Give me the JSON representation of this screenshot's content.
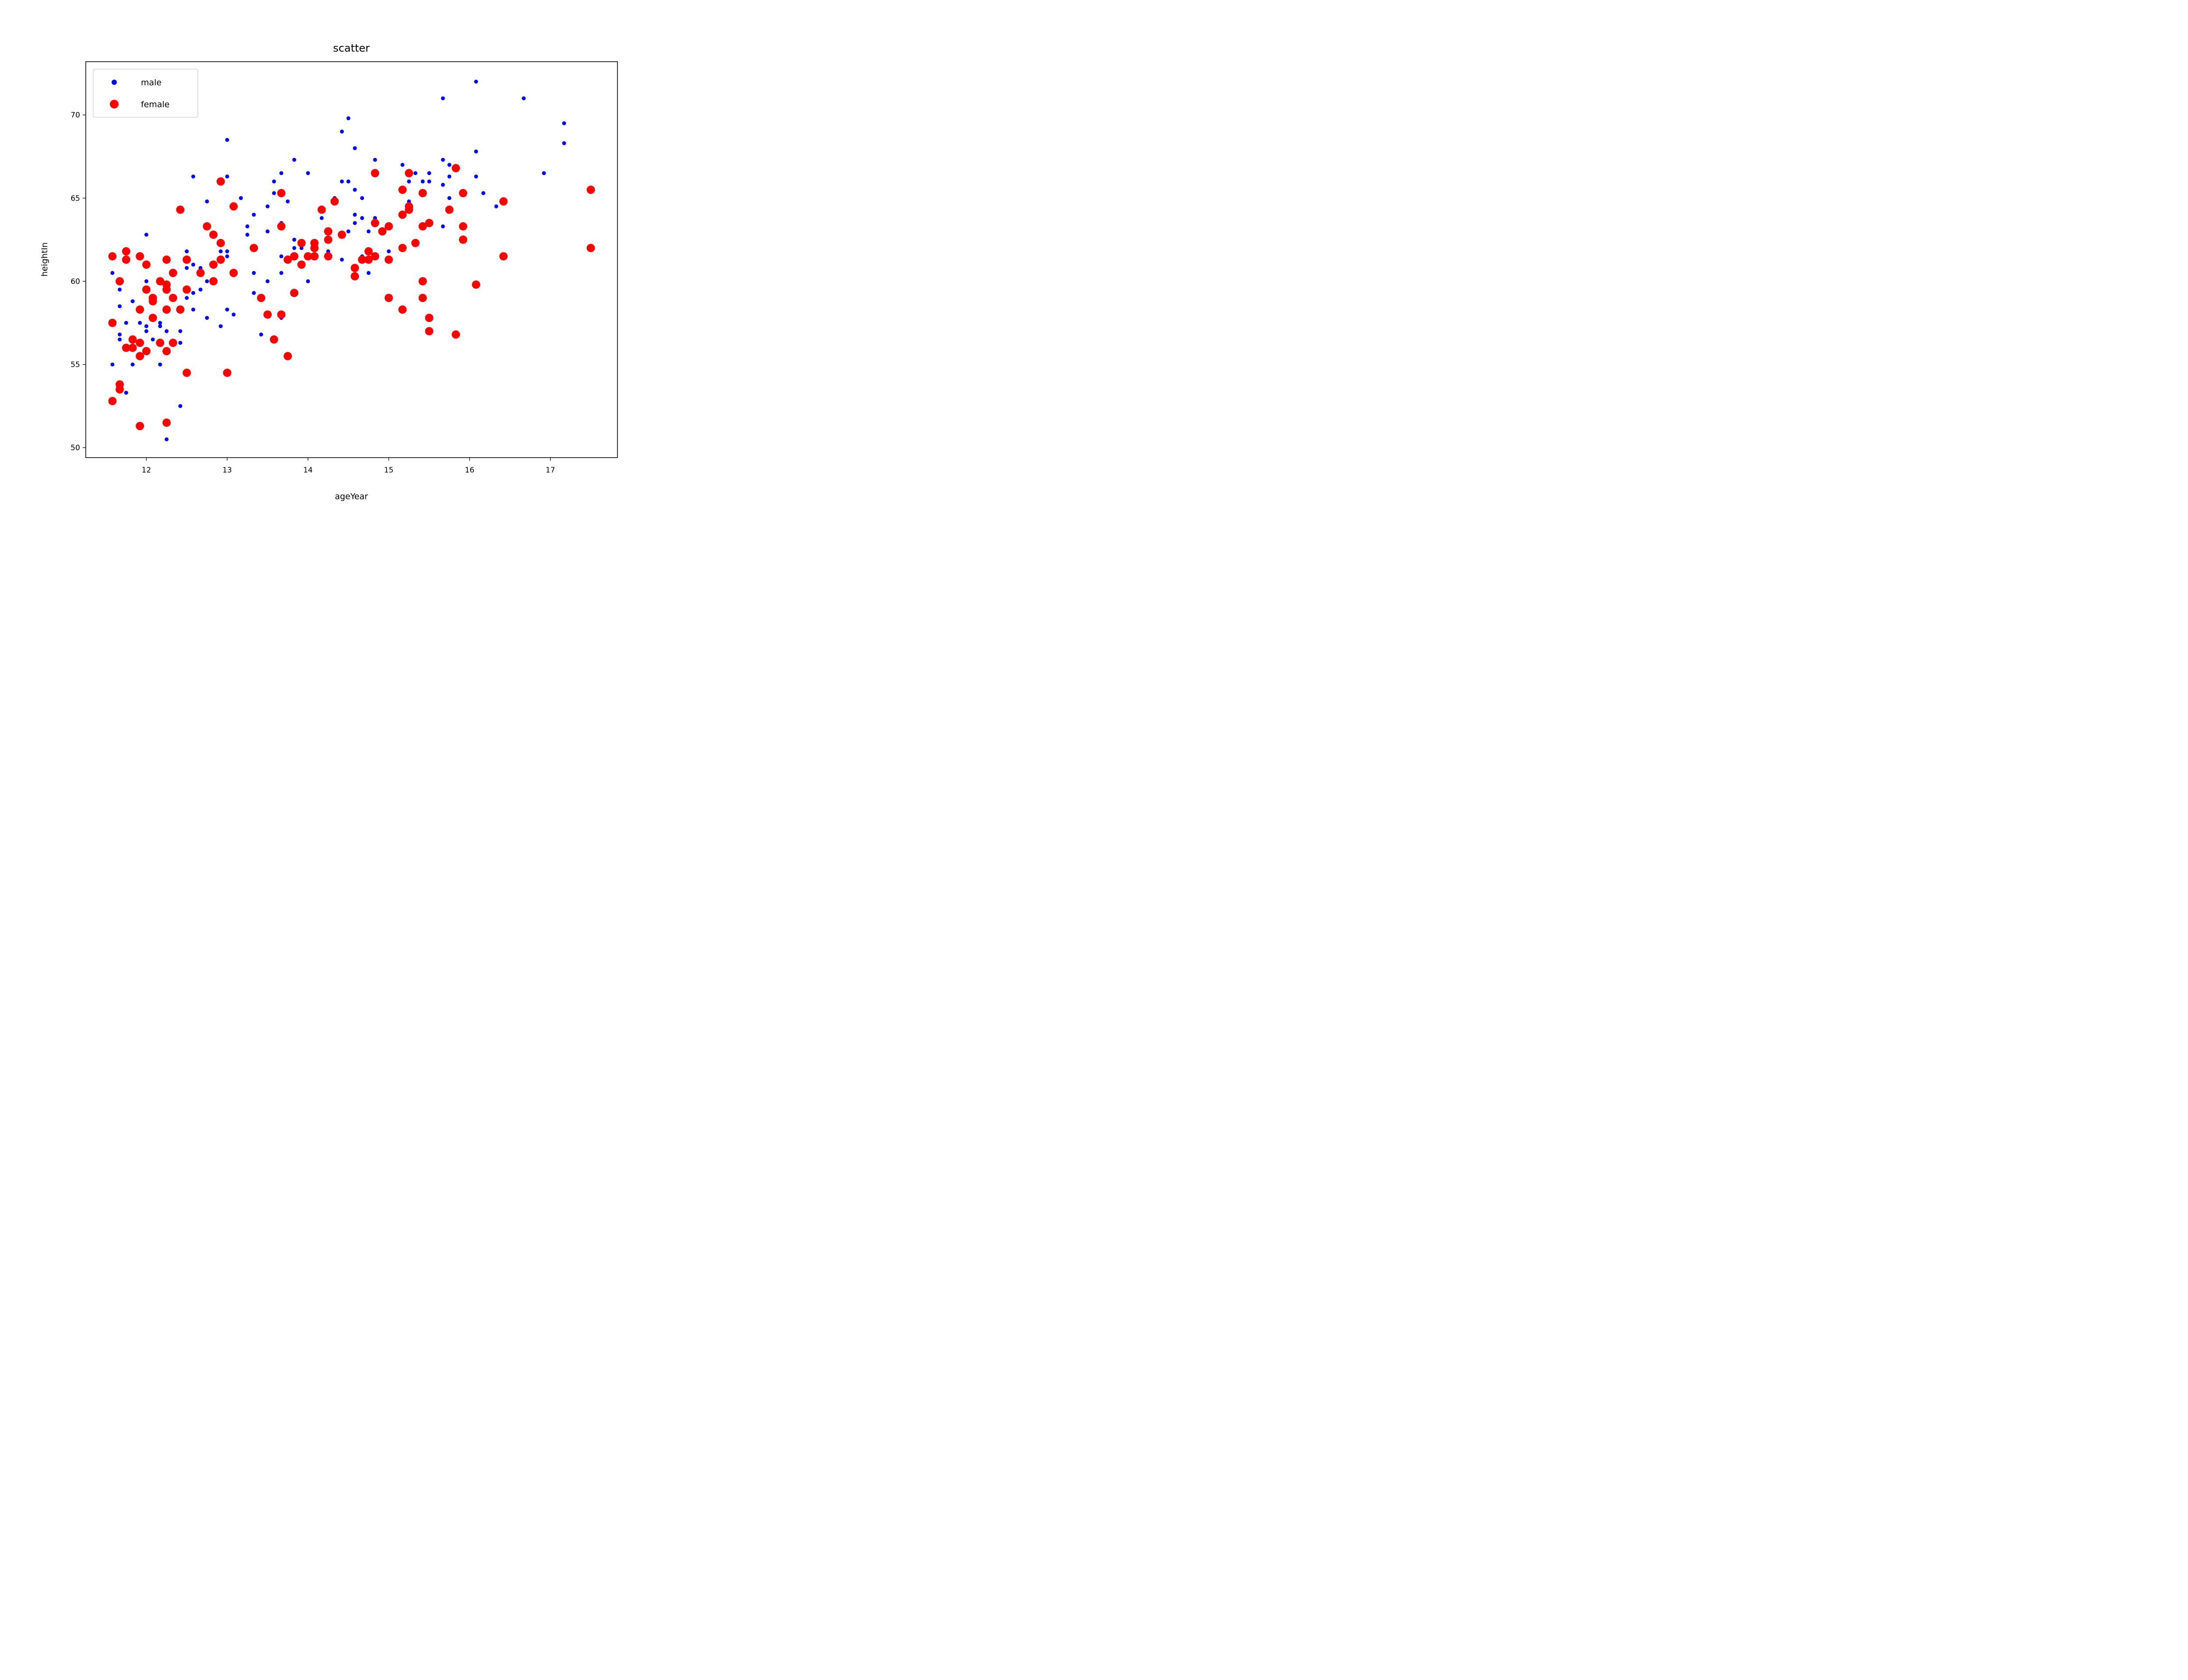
{
  "chart_data": {
    "type": "scatter",
    "title": "scatter",
    "xlabel": "ageYear",
    "ylabel": "heightIn",
    "xlim": [
      11.25,
      17.83
    ],
    "ylim": [
      49.4,
      73.2
    ],
    "xticks": [
      12,
      13,
      14,
      15,
      16,
      17
    ],
    "yticks": [
      50,
      55,
      60,
      65,
      70
    ],
    "grid": false,
    "legend_position": "upper-left",
    "series": [
      {
        "name": "male",
        "color": "#0000ff",
        "marker": "small-circle",
        "points": [
          [
            11.58,
            60.5
          ],
          [
            11.58,
            55.0
          ],
          [
            11.67,
            59.5
          ],
          [
            11.67,
            56.8
          ],
          [
            11.67,
            56.5
          ],
          [
            11.67,
            58.5
          ],
          [
            11.75,
            57.5
          ],
          [
            11.75,
            53.3
          ],
          [
            11.83,
            58.8
          ],
          [
            11.83,
            55.0
          ],
          [
            11.92,
            57.5
          ],
          [
            12.0,
            62.8
          ],
          [
            12.0,
            60.0
          ],
          [
            12.0,
            57.3
          ],
          [
            12.0,
            57.0
          ],
          [
            12.08,
            56.5
          ],
          [
            12.17,
            57.5
          ],
          [
            12.17,
            57.3
          ],
          [
            12.17,
            55.0
          ],
          [
            12.25,
            57.0
          ],
          [
            12.25,
            50.5
          ],
          [
            12.42,
            57.0
          ],
          [
            12.42,
            56.3
          ],
          [
            12.42,
            52.5
          ],
          [
            12.5,
            61.8
          ],
          [
            12.5,
            60.8
          ],
          [
            12.5,
            59.0
          ],
          [
            12.58,
            66.3
          ],
          [
            12.58,
            61.0
          ],
          [
            12.58,
            59.3
          ],
          [
            12.58,
            58.3
          ],
          [
            12.67,
            60.8
          ],
          [
            12.67,
            59.5
          ],
          [
            12.75,
            64.8
          ],
          [
            12.75,
            60.0
          ],
          [
            12.75,
            57.8
          ],
          [
            12.92,
            61.8
          ],
          [
            12.92,
            57.3
          ],
          [
            13.0,
            68.5
          ],
          [
            13.0,
            66.3
          ],
          [
            13.0,
            61.8
          ],
          [
            13.0,
            61.5
          ],
          [
            13.0,
            58.3
          ],
          [
            13.08,
            58.0
          ],
          [
            13.17,
            65.0
          ],
          [
            13.25,
            63.3
          ],
          [
            13.25,
            62.8
          ],
          [
            13.33,
            64.0
          ],
          [
            13.33,
            60.5
          ],
          [
            13.33,
            59.3
          ],
          [
            13.42,
            56.8
          ],
          [
            13.5,
            64.5
          ],
          [
            13.5,
            63.0
          ],
          [
            13.5,
            60.0
          ],
          [
            13.58,
            66.0
          ],
          [
            13.58,
            65.3
          ],
          [
            13.67,
            66.5
          ],
          [
            13.67,
            63.5
          ],
          [
            13.67,
            61.5
          ],
          [
            13.67,
            60.5
          ],
          [
            13.67,
            57.8
          ],
          [
            13.75,
            64.8
          ],
          [
            13.83,
            67.3
          ],
          [
            13.83,
            62.5
          ],
          [
            13.83,
            62.0
          ],
          [
            13.92,
            62.0
          ],
          [
            14.0,
            66.5
          ],
          [
            14.0,
            60.0
          ],
          [
            14.17,
            63.8
          ],
          [
            14.25,
            61.8
          ],
          [
            14.33,
            65.0
          ],
          [
            14.42,
            69.0
          ],
          [
            14.42,
            66.0
          ],
          [
            14.42,
            61.3
          ],
          [
            14.5,
            69.8
          ],
          [
            14.5,
            66.0
          ],
          [
            14.5,
            63.0
          ],
          [
            14.58,
            68.0
          ],
          [
            14.58,
            65.5
          ],
          [
            14.58,
            64.0
          ],
          [
            14.58,
            63.5
          ],
          [
            14.67,
            65.0
          ],
          [
            14.67,
            63.8
          ],
          [
            14.67,
            61.5
          ],
          [
            14.75,
            63.0
          ],
          [
            14.75,
            60.5
          ],
          [
            14.83,
            67.3
          ],
          [
            14.83,
            63.8
          ],
          [
            15.0,
            61.8
          ],
          [
            15.17,
            67.0
          ],
          [
            15.25,
            66.0
          ],
          [
            15.25,
            64.8
          ],
          [
            15.33,
            66.5
          ],
          [
            15.42,
            66.0
          ],
          [
            15.5,
            66.5
          ],
          [
            15.5,
            66.0
          ],
          [
            15.67,
            71.0
          ],
          [
            15.67,
            67.3
          ],
          [
            15.67,
            65.8
          ],
          [
            15.67,
            63.3
          ],
          [
            15.75,
            67.0
          ],
          [
            15.75,
            66.3
          ],
          [
            15.75,
            65.0
          ],
          [
            16.08,
            72.0
          ],
          [
            16.08,
            67.8
          ],
          [
            16.08,
            66.3
          ],
          [
            16.17,
            65.3
          ],
          [
            16.33,
            64.5
          ],
          [
            16.67,
            71.0
          ],
          [
            16.92,
            66.5
          ],
          [
            17.17,
            69.5
          ],
          [
            17.17,
            68.3
          ]
        ]
      },
      {
        "name": "female",
        "color": "#ff0000",
        "marker": "large-circle",
        "points": [
          [
            11.58,
            61.5
          ],
          [
            11.58,
            57.5
          ],
          [
            11.58,
            52.8
          ],
          [
            11.67,
            60.0
          ],
          [
            11.67,
            53.8
          ],
          [
            11.67,
            53.5
          ],
          [
            11.75,
            61.8
          ],
          [
            11.75,
            61.3
          ],
          [
            11.75,
            56.0
          ],
          [
            11.83,
            56.5
          ],
          [
            11.83,
            56.0
          ],
          [
            11.92,
            61.5
          ],
          [
            11.92,
            58.3
          ],
          [
            11.92,
            56.3
          ],
          [
            11.92,
            55.5
          ],
          [
            11.92,
            51.3
          ],
          [
            12.0,
            61.0
          ],
          [
            12.0,
            59.5
          ],
          [
            12.0,
            55.8
          ],
          [
            12.08,
            59.0
          ],
          [
            12.08,
            58.8
          ],
          [
            12.08,
            57.8
          ],
          [
            12.17,
            60.0
          ],
          [
            12.17,
            56.3
          ],
          [
            12.25,
            61.3
          ],
          [
            12.25,
            59.8
          ],
          [
            12.25,
            59.5
          ],
          [
            12.25,
            58.3
          ],
          [
            12.25,
            55.8
          ],
          [
            12.25,
            51.5
          ],
          [
            12.33,
            60.5
          ],
          [
            12.33,
            59.0
          ],
          [
            12.33,
            56.3
          ],
          [
            12.42,
            64.3
          ],
          [
            12.42,
            58.3
          ],
          [
            12.5,
            61.3
          ],
          [
            12.5,
            59.5
          ],
          [
            12.5,
            54.5
          ],
          [
            12.67,
            60.5
          ],
          [
            12.75,
            63.3
          ],
          [
            12.83,
            62.8
          ],
          [
            12.83,
            61.0
          ],
          [
            12.83,
            60.0
          ],
          [
            12.92,
            66.0
          ],
          [
            12.92,
            62.3
          ],
          [
            12.92,
            61.3
          ],
          [
            13.0,
            54.5
          ],
          [
            13.08,
            64.5
          ],
          [
            13.08,
            60.5
          ],
          [
            13.33,
            62.0
          ],
          [
            13.42,
            59.0
          ],
          [
            13.5,
            58.0
          ],
          [
            13.58,
            56.5
          ],
          [
            13.67,
            65.3
          ],
          [
            13.67,
            63.3
          ],
          [
            13.67,
            58.0
          ],
          [
            13.75,
            61.3
          ],
          [
            13.75,
            55.5
          ],
          [
            13.83,
            61.5
          ],
          [
            13.83,
            59.3
          ],
          [
            13.92,
            62.3
          ],
          [
            13.92,
            61.0
          ],
          [
            14.0,
            61.5
          ],
          [
            14.08,
            62.3
          ],
          [
            14.08,
            62.0
          ],
          [
            14.08,
            61.5
          ],
          [
            14.17,
            64.3
          ],
          [
            14.25,
            63.0
          ],
          [
            14.25,
            62.5
          ],
          [
            14.25,
            61.5
          ],
          [
            14.33,
            64.8
          ],
          [
            14.42,
            62.8
          ],
          [
            14.58,
            60.8
          ],
          [
            14.58,
            60.3
          ],
          [
            14.67,
            61.3
          ],
          [
            14.75,
            61.8
          ],
          [
            14.75,
            61.3
          ],
          [
            14.83,
            66.5
          ],
          [
            14.83,
            63.5
          ],
          [
            14.83,
            61.5
          ],
          [
            14.92,
            63.0
          ],
          [
            15.0,
            63.3
          ],
          [
            15.0,
            61.3
          ],
          [
            15.0,
            59.0
          ],
          [
            15.17,
            65.5
          ],
          [
            15.17,
            64.0
          ],
          [
            15.17,
            62.0
          ],
          [
            15.17,
            58.3
          ],
          [
            15.25,
            66.5
          ],
          [
            15.25,
            64.5
          ],
          [
            15.25,
            64.3
          ],
          [
            15.33,
            62.3
          ],
          [
            15.42,
            65.3
          ],
          [
            15.42,
            63.3
          ],
          [
            15.42,
            60.0
          ],
          [
            15.42,
            59.0
          ],
          [
            15.5,
            63.5
          ],
          [
            15.5,
            57.8
          ],
          [
            15.5,
            57.0
          ],
          [
            15.75,
            64.3
          ],
          [
            15.83,
            66.8
          ],
          [
            15.83,
            56.8
          ],
          [
            15.92,
            65.3
          ],
          [
            15.92,
            63.3
          ],
          [
            15.92,
            62.5
          ],
          [
            16.08,
            59.8
          ],
          [
            16.42,
            64.8
          ],
          [
            16.42,
            61.5
          ],
          [
            17.5,
            65.5
          ],
          [
            17.5,
            62.0
          ]
        ]
      }
    ]
  }
}
